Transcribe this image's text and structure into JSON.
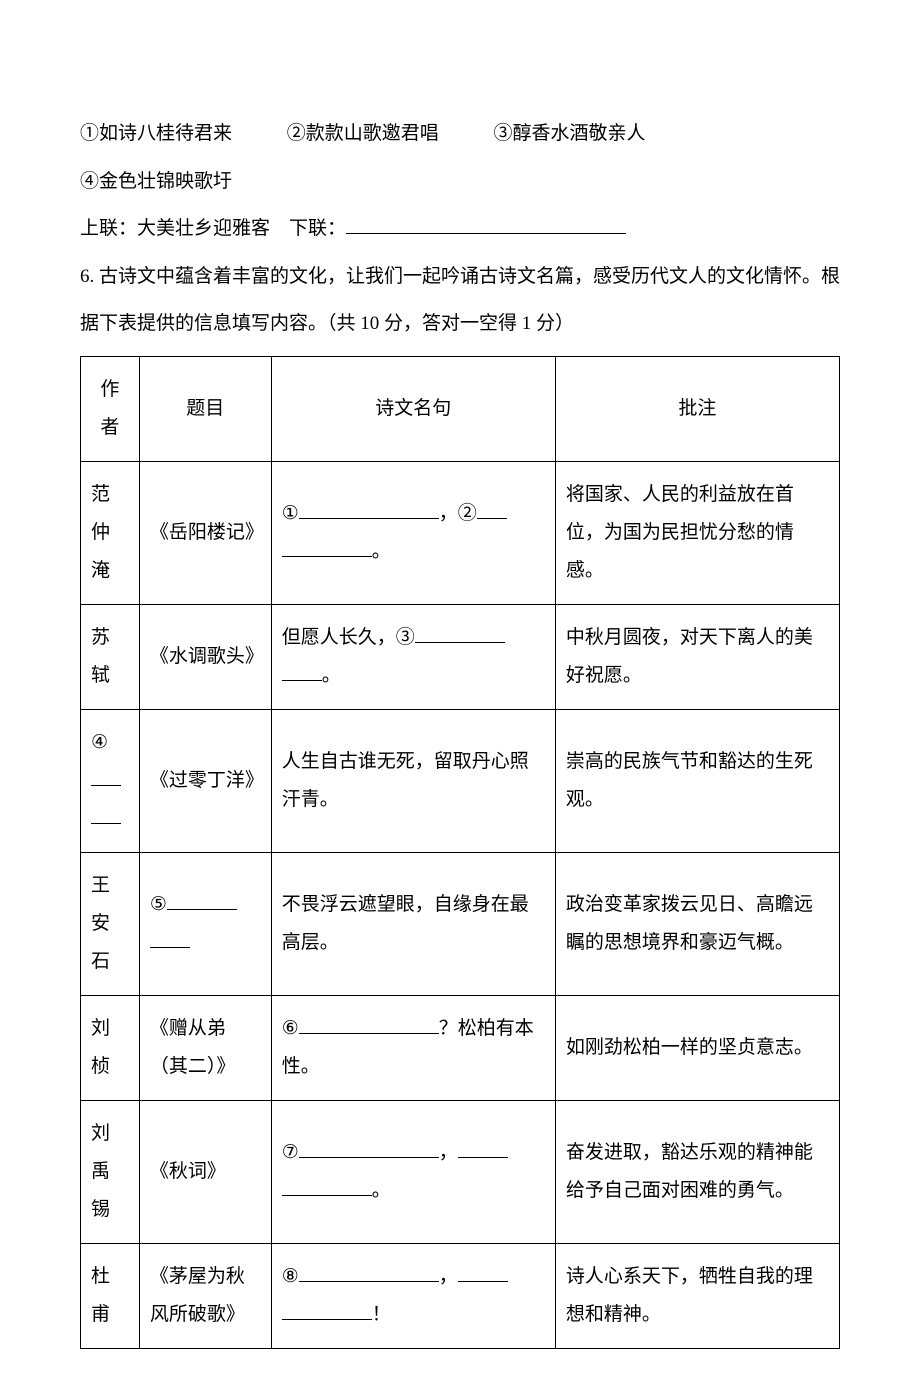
{
  "options": {
    "opt1": "①如诗八桂待君来",
    "opt2": "②款款山歌邀君唱",
    "opt3": "③醇香水酒敬亲人",
    "opt4": "④金色壮锦映歌圩"
  },
  "couplet": {
    "upper_label": "上联：",
    "upper_text": "大美壮乡迎雅客",
    "lower_label": "下联：",
    "blank": ""
  },
  "q6": {
    "number": "6. ",
    "text": "古诗文中蕴含着丰富的文化，让我们一起吟诵古诗文名篇，感受历代文人的文化情怀。根据下表提供的信息填写内容。（共 10 分，答对一空得 1 分）"
  },
  "table": {
    "headers": {
      "author": "作者",
      "title": "题目",
      "verse": "诗文名句",
      "note": "批注"
    },
    "rows": [
      {
        "author": "范仲淹",
        "title": "《岳阳楼记》",
        "verse_prefix1": "①",
        "verse_mid": "，②",
        "verse_suffix": "。",
        "note": "将国家、人民的利益放在首位，为国为民担忧分愁的情感。"
      },
      {
        "author": "苏轼",
        "title": "《水调歌头》",
        "verse_prefix": "但愿人长久，③",
        "verse_suffix": "。",
        "note": "中秋月圆夜，对天下离人的美好祝愿。"
      },
      {
        "author_prefix": "④",
        "title": "《过零丁洋》",
        "verse": "人生自古谁无死，留取丹心照汗青。",
        "note": "崇高的民族气节和豁达的生死观。"
      },
      {
        "author": "王安石",
        "title_prefix": "⑤",
        "verse": "不畏浮云遮望眼，自缘身在最高层。",
        "note": "政治变革家拨云见日、高瞻远瞩的思想境界和豪迈气概。"
      },
      {
        "author": "刘桢",
        "title": "《赠从弟（其二）》",
        "verse_prefix": "⑥",
        "verse_suffix": "？松柏有本性。",
        "note": "如刚劲松柏一样的坚贞意志。"
      },
      {
        "author": "刘禹锡",
        "title": "《秋词》",
        "verse_prefix": "⑦",
        "verse_mid": "，",
        "verse_suffix": "。",
        "note": "奋发进取，豁达乐观的精神能给予自己面对困难的勇气。"
      },
      {
        "author": "杜甫",
        "title": "《茅屋为秋风所破歌》",
        "verse_prefix": "⑧",
        "verse_mid": "，",
        "verse_suffix": "！",
        "note": "诗人心系天下，牺牲自我的理想和精神。"
      }
    ]
  }
}
